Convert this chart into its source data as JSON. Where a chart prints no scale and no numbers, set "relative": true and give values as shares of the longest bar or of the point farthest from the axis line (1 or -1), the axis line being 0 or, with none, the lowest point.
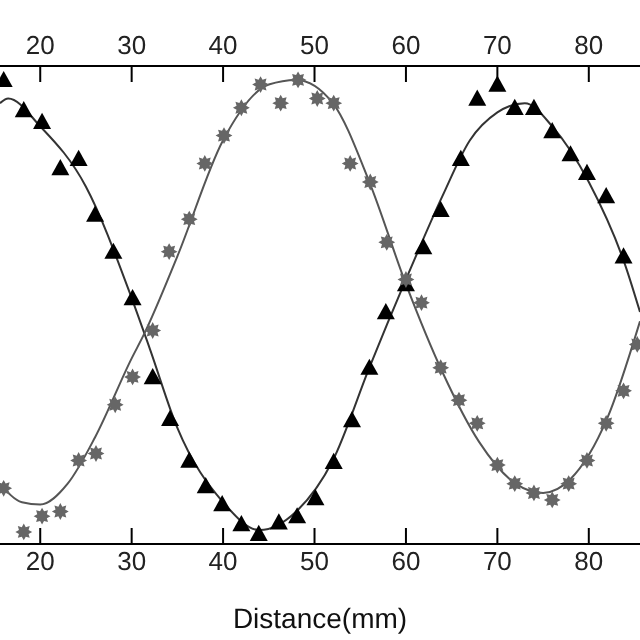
{
  "chart_data": {
    "type": "scatter",
    "xlabel": "Distance(mm)",
    "relative": true,
    "xlim": [
      15.6,
      85.6
    ],
    "xticks": [
      20,
      30,
      40,
      50,
      60,
      70,
      80
    ],
    "x2lim": [
      15.6,
      85.6
    ],
    "x2ticks": [
      20,
      30,
      40,
      50,
      60,
      70,
      80
    ],
    "tick_labels": "x",
    "series": [
      {
        "type": "line",
        "color": "#333333",
        "line_style": "solid",
        "x": [
          15.6,
          16.5,
          20,
          25,
          30,
          32,
          35,
          40,
          44,
          48,
          52,
          56,
          60,
          64,
          67,
          70,
          73,
          76,
          80,
          84,
          85.6
        ],
        "values": [
          0.95,
          0.96,
          0.9,
          0.77,
          0.53,
          0.42,
          0.25,
          0.09,
          0.03,
          0.07,
          0.18,
          0.38,
          0.57,
          0.75,
          0.87,
          0.93,
          0.95,
          0.9,
          0.78,
          0.6,
          0.5
        ]
      },
      {
        "type": "line",
        "color": "#555555",
        "line_style": "solid",
        "x": [
          15.6,
          18,
          20,
          23,
          26,
          30,
          31.3,
          35,
          40,
          45,
          48,
          52,
          56,
          60,
          64,
          68,
          72,
          75,
          78,
          82,
          85.6
        ],
        "values": [
          0.13,
          0.09,
          0.085,
          0.13,
          0.23,
          0.4,
          0.45,
          0.62,
          0.87,
          0.99,
          1.0,
          0.95,
          0.78,
          0.56,
          0.37,
          0.22,
          0.13,
          0.11,
          0.14,
          0.27,
          0.48
        ]
      },
      {
        "color": "#000000",
        "marker": "triangle",
        "x": [
          16.0,
          18.2,
          20.2,
          22.2,
          24.2,
          26.0,
          28.0,
          30.1,
          32.3,
          34.2,
          36.3,
          38.1,
          39.9,
          42.0,
          43.9,
          46.1,
          48.1,
          50.1,
          52.1,
          54.1,
          56.0,
          57.8,
          60.0,
          61.9,
          63.8,
          66.0,
          67.8,
          70.0,
          71.9,
          74.0,
          76.0,
          78.0,
          79.8,
          81.9,
          83.8
        ],
        "values": [
          1.0,
          0.935,
          0.91,
          0.81,
          0.83,
          0.71,
          0.63,
          0.53,
          0.36,
          0.27,
          0.18,
          0.125,
          0.086,
          0.043,
          0.022,
          0.047,
          0.06,
          0.099,
          0.177,
          0.267,
          0.38,
          0.5,
          0.56,
          0.64,
          0.72,
          0.83,
          0.96,
          0.99,
          0.94,
          0.94,
          0.89,
          0.84,
          0.8,
          0.75,
          0.62
        ]
      },
      {
        "color": "#666666",
        "marker": "star",
        "x": [
          16.0,
          18.2,
          20.2,
          22.2,
          24.2,
          26.1,
          28.2,
          30.1,
          32.3,
          34.1,
          36.3,
          38.0,
          40.1,
          42.0,
          44.1,
          46.3,
          48.2,
          50.3,
          52.1,
          53.9,
          56.1,
          57.9,
          60.0,
          61.7,
          63.8,
          65.8,
          67.8,
          70.0,
          71.9,
          74.0,
          76.0,
          77.8,
          79.8,
          81.9,
          83.8,
          85.3
        ],
        "values": [
          0.12,
          0.026,
          0.06,
          0.07,
          0.18,
          0.195,
          0.3,
          0.36,
          0.46,
          0.63,
          0.7,
          0.82,
          0.88,
          0.94,
          0.99,
          0.95,
          1.0,
          0.96,
          0.95,
          0.82,
          0.78,
          0.65,
          0.57,
          0.52,
          0.38,
          0.31,
          0.26,
          0.17,
          0.13,
          0.11,
          0.095,
          0.13,
          0.18,
          0.26,
          0.33,
          0.43
        ]
      }
    ]
  }
}
